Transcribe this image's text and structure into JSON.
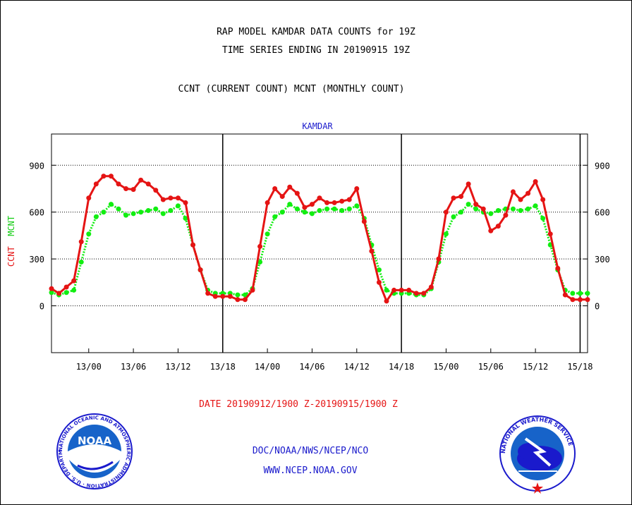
{
  "header": {
    "title_line1": "RAP MODEL KAMDAR DATA COUNTS for 19Z",
    "title_line2": "TIME SERIES ENDING IN 20190915 19Z",
    "subtitle": "CCNT (CURRENT COUNT) MCNT (MONTHLY COUNT)",
    "station": "KAMDAR"
  },
  "footer": {
    "date_range": "DATE 20190912/1900 Z-20190915/1900 Z",
    "org": "DOC/NOAA/NWS/NCEP/NCO",
    "url": "WWW.NCEP.NOAA.GOV",
    "noaa_logo_text": "NOAA",
    "noaa_ring_text": "NATIONAL OCEANIC AND ATMOSPHERIC ADMINISTRATION · U.S. DEPARTMENT OF COMMERCE",
    "nws_ring_text": "NATIONAL WEATHER SERVICE"
  },
  "colors": {
    "ccnt": "#e51414",
    "mcnt": "#11ee11",
    "text_blue": "#1a1acc"
  },
  "chart_data": {
    "type": "line",
    "title": "KAMDAR",
    "ylabel_ccnt": "CCNT",
    "ylabel_mcnt": "MCNT",
    "ylim": [
      -300,
      1100
    ],
    "yticks": [
      0,
      300,
      600,
      900
    ],
    "ytick_labels": [
      "0",
      "300",
      "600",
      "900"
    ],
    "grid": "dotted horizontal at y ticks",
    "x_unit": "hours since 12/19Z",
    "xlim": [
      0,
      72
    ],
    "xticks": [
      5,
      11,
      17,
      23,
      29,
      35,
      41,
      47,
      53,
      59,
      65,
      71
    ],
    "xtick_labels": [
      "13/00",
      "13/06",
      "13/12",
      "13/18",
      "14/00",
      "14/06",
      "14/12",
      "14/18",
      "15/00",
      "15/06",
      "15/12",
      "15/18"
    ],
    "vlines": [
      23,
      47,
      71
    ],
    "series": [
      {
        "name": "CCNT",
        "color": "#e51414",
        "values": [
          110,
          80,
          120,
          160,
          410,
          690,
          780,
          830,
          830,
          780,
          750,
          745,
          805,
          780,
          740,
          680,
          690,
          690,
          660,
          390,
          230,
          80,
          60,
          60,
          60,
          40,
          40,
          100,
          380,
          660,
          750,
          700,
          760,
          720,
          630,
          650,
          690,
          660,
          660,
          670,
          680,
          750,
          540,
          350,
          150,
          30,
          100,
          100,
          100,
          80,
          80,
          120,
          300,
          600,
          690,
          700,
          780,
          650,
          620,
          480,
          510,
          580,
          730,
          680,
          720,
          795,
          680,
          460,
          240,
          70,
          40,
          40,
          40
        ]
      },
      {
        "name": "MCNT",
        "color": "#11ee11",
        "values": [
          85,
          70,
          85,
          100,
          280,
          460,
          570,
          600,
          650,
          620,
          580,
          590,
          600,
          610,
          620,
          590,
          610,
          640,
          560,
          390,
          230,
          100,
          80,
          80,
          80,
          70,
          70,
          110,
          280,
          460,
          570,
          600,
          650,
          620,
          600,
          590,
          610,
          620,
          620,
          610,
          620,
          640,
          560,
          390,
          230,
          100,
          80,
          80,
          80,
          70,
          70,
          110,
          280,
          460,
          570,
          600,
          650,
          620,
          600,
          590,
          610,
          620,
          620,
          610,
          620,
          640,
          560,
          390,
          230,
          100,
          80,
          80,
          80
        ]
      }
    ]
  }
}
